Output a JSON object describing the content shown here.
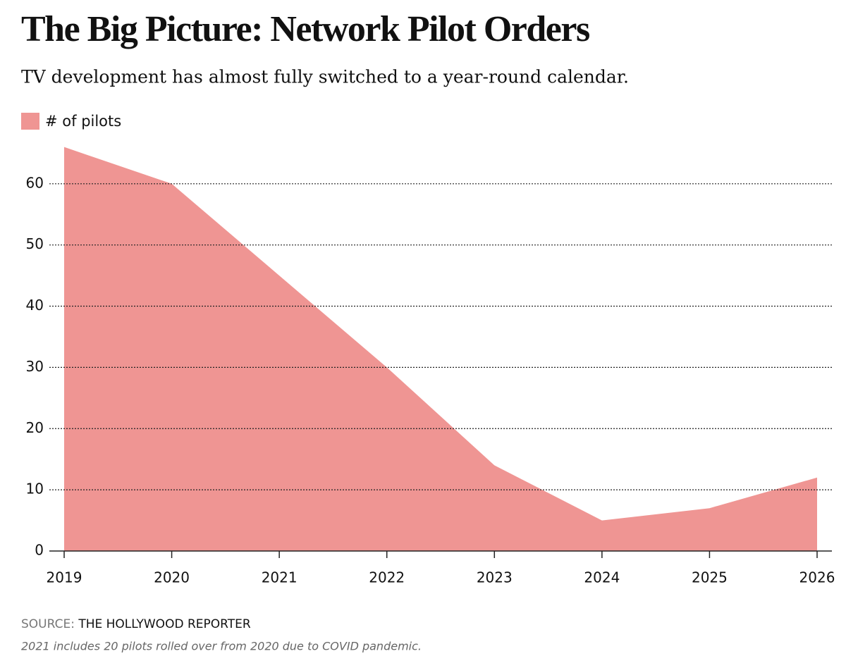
{
  "chart_data": {
    "type": "area",
    "title": "The Big Picture: Network Pilot Orders",
    "subtitle": "TV development has almost fully switched to a year-round calendar.",
    "x": [
      2019,
      2020,
      2021,
      2022,
      2023,
      2024,
      2025,
      2026
    ],
    "series": [
      {
        "name": "# of pilots",
        "color": "#ef9593",
        "values": [
          66,
          60,
          45,
          30,
          14,
          5,
          7,
          12
        ]
      }
    ],
    "xlim": [
      2019,
      2026
    ],
    "xticks": [
      2019,
      2020,
      2021,
      2022,
      2023,
      2024,
      2025,
      2026
    ],
    "ylim": [
      0,
      67
    ],
    "yticks": [
      0,
      10,
      20,
      30,
      40,
      50,
      60
    ],
    "grid": true,
    "legend": "top-left",
    "source_label": "SOURCE:",
    "source": "THE HOLLYWOOD REPORTER",
    "note": "2021 includes 20 pilots rolled over from 2020 due to COVID pandemic."
  }
}
